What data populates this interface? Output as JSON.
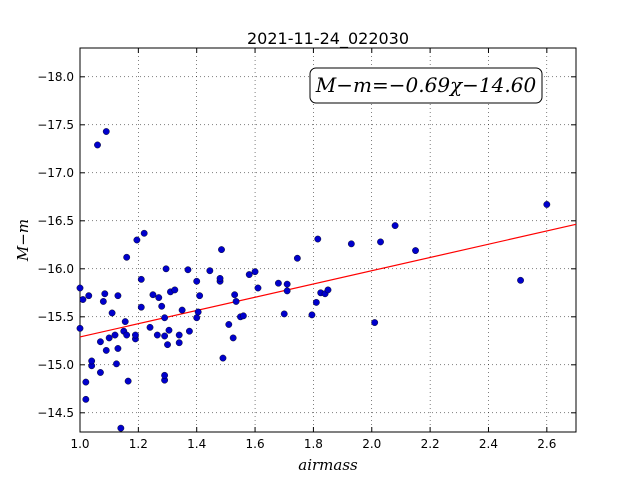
{
  "chart_data": {
    "type": "scatter",
    "title": "2021-11-24_022030",
    "xlabel": "airmass",
    "ylabel": "M−m",
    "xlim": [
      1.0,
      2.7
    ],
    "ylim": [
      -18.3,
      -14.3
    ],
    "y_inverted": true,
    "grid": true,
    "xticks": [
      "1.0",
      "1.2",
      "1.4",
      "1.6",
      "1.8",
      "2.0",
      "2.2",
      "2.4",
      "2.6"
    ],
    "yticks": [
      "−14.5",
      "−15.0",
      "−15.5",
      "−16.0",
      "−16.5",
      "−17.0",
      "−17.5",
      "−18.0"
    ],
    "annotation": "M−m=−0.69χ−14.60",
    "fit": {
      "slope": -0.69,
      "intercept": -14.6,
      "color": "#ff0000"
    },
    "marker_color": "#0000cc",
    "points": [
      [
        1.0,
        -15.38
      ],
      [
        1.0,
        -15.8
      ],
      [
        1.01,
        -15.68
      ],
      [
        1.02,
        -14.82
      ],
      [
        1.02,
        -14.64
      ],
      [
        1.03,
        -15.72
      ],
      [
        1.04,
        -14.99
      ],
      [
        1.04,
        -15.04
      ],
      [
        1.06,
        -17.29
      ],
      [
        1.07,
        -15.24
      ],
      [
        1.07,
        -14.92
      ],
      [
        1.08,
        -15.66
      ],
      [
        1.085,
        -15.74
      ],
      [
        1.09,
        -17.43
      ],
      [
        1.09,
        -15.15
      ],
      [
        1.1,
        -15.28
      ],
      [
        1.11,
        -15.54
      ],
      [
        1.12,
        -15.31
      ],
      [
        1.125,
        -15.01
      ],
      [
        1.13,
        -15.17
      ],
      [
        1.13,
        -15.72
      ],
      [
        1.14,
        -14.34
      ],
      [
        1.15,
        -15.35
      ],
      [
        1.155,
        -15.45
      ],
      [
        1.16,
        -15.31
      ],
      [
        1.16,
        -16.12
      ],
      [
        1.165,
        -14.83
      ],
      [
        1.19,
        -15.27
      ],
      [
        1.19,
        -15.31
      ],
      [
        1.195,
        -16.3
      ],
      [
        1.21,
        -15.6
      ],
      [
        1.21,
        -15.89
      ],
      [
        1.22,
        -16.37
      ],
      [
        1.24,
        -15.39
      ],
      [
        1.25,
        -15.73
      ],
      [
        1.265,
        -15.31
      ],
      [
        1.27,
        -15.7
      ],
      [
        1.28,
        -15.61
      ],
      [
        1.29,
        -15.49
      ],
      [
        1.29,
        -14.84
      ],
      [
        1.29,
        -14.89
      ],
      [
        1.29,
        -15.3
      ],
      [
        1.295,
        -16.0
      ],
      [
        1.3,
        -15.21
      ],
      [
        1.305,
        -15.36
      ],
      [
        1.31,
        -15.76
      ],
      [
        1.325,
        -15.78
      ],
      [
        1.34,
        -15.31
      ],
      [
        1.34,
        -15.23
      ],
      [
        1.35,
        -15.57
      ],
      [
        1.37,
        -15.99
      ],
      [
        1.375,
        -15.35
      ],
      [
        1.4,
        -15.49
      ],
      [
        1.4,
        -15.87
      ],
      [
        1.405,
        -15.55
      ],
      [
        1.41,
        -15.72
      ],
      [
        1.445,
        -15.98
      ],
      [
        1.48,
        -15.87
      ],
      [
        1.48,
        -15.9
      ],
      [
        1.485,
        -16.2
      ],
      [
        1.49,
        -15.07
      ],
      [
        1.51,
        -15.42
      ],
      [
        1.525,
        -15.28
      ],
      [
        1.53,
        -15.73
      ],
      [
        1.535,
        -15.66
      ],
      [
        1.55,
        -15.5
      ],
      [
        1.56,
        -15.51
      ],
      [
        1.58,
        -15.94
      ],
      [
        1.6,
        -15.97
      ],
      [
        1.61,
        -15.8
      ],
      [
        1.68,
        -15.85
      ],
      [
        1.7,
        -15.53
      ],
      [
        1.71,
        -15.77
      ],
      [
        1.71,
        -15.84
      ],
      [
        1.745,
        -16.11
      ],
      [
        1.795,
        -15.52
      ],
      [
        1.81,
        -15.65
      ],
      [
        1.815,
        -16.31
      ],
      [
        1.825,
        -15.75
      ],
      [
        1.84,
        -15.74
      ],
      [
        1.85,
        -15.78
      ],
      [
        1.93,
        -16.26
      ],
      [
        2.01,
        -15.44
      ],
      [
        2.03,
        -16.28
      ],
      [
        2.08,
        -16.45
      ],
      [
        2.15,
        -16.19
      ],
      [
        2.51,
        -15.88
      ],
      [
        2.6,
        -16.67
      ]
    ]
  }
}
